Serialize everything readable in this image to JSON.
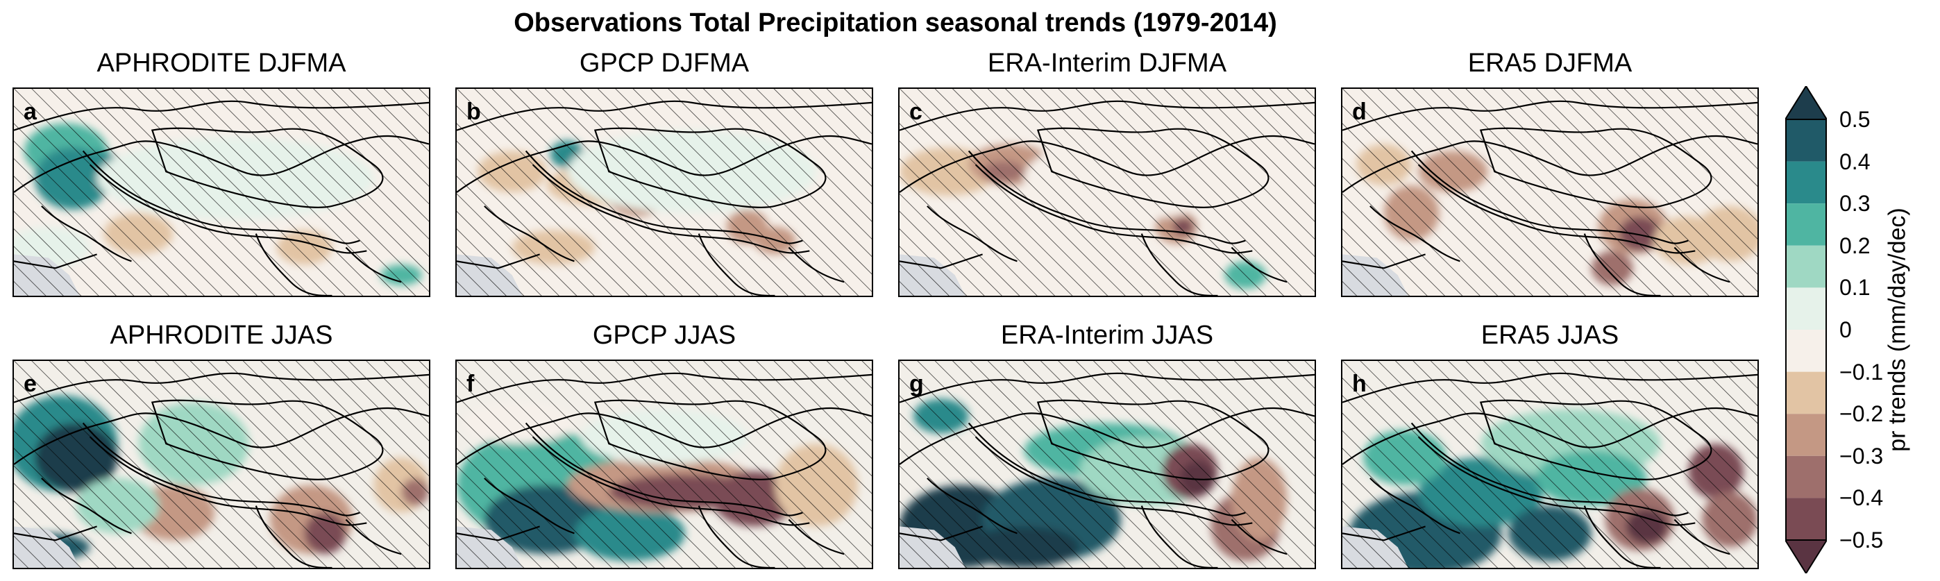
{
  "figure_title": "Observations Total Precipitation seasonal trends (1979-2014)",
  "panels": [
    {
      "label": "a",
      "title": "APHRODITE DJFMA",
      "dataset": "APHRODITE",
      "season": "DJFMA"
    },
    {
      "label": "b",
      "title": "GPCP DJFMA",
      "dataset": "GPCP",
      "season": "DJFMA"
    },
    {
      "label": "c",
      "title": "ERA-Interim DJFMA",
      "dataset": "ERA-Interim",
      "season": "DJFMA"
    },
    {
      "label": "d",
      "title": "ERA5 DJFMA",
      "dataset": "ERA5",
      "season": "DJFMA"
    },
    {
      "label": "e",
      "title": "APHRODITE JJAS",
      "dataset": "APHRODITE",
      "season": "JJAS"
    },
    {
      "label": "f",
      "title": "GPCP JJAS",
      "dataset": "GPCP",
      "season": "JJAS"
    },
    {
      "label": "g",
      "title": "ERA-Interim JJAS",
      "dataset": "ERA-Interim",
      "season": "JJAS"
    },
    {
      "label": "h",
      "title": "ERA5 JJAS",
      "dataset": "ERA5",
      "season": "JJAS"
    }
  ],
  "colorbar": {
    "label": "pr trends (mm/day/dec)",
    "ticks": [
      "0.5",
      "0.4",
      "0.3",
      "0.2",
      "0.1",
      "0",
      "−0.1",
      "−0.2",
      "−0.3",
      "−0.4",
      "−0.5"
    ],
    "levels_top_to_bottom": [
      {
        "range": ">0.5",
        "color": "#1d3d4c"
      },
      {
        "range": "0.4 to 0.5",
        "color": "#205a68"
      },
      {
        "range": "0.3 to 0.4",
        "color": "#2a8a8b"
      },
      {
        "range": "0.2 to 0.3",
        "color": "#4fb5a2"
      },
      {
        "range": "0.1 to 0.2",
        "color": "#9fd8c3"
      },
      {
        "range": "0 to 0.1",
        "color": "#e6f2ea"
      },
      {
        "range": "-0.1 to 0",
        "color": "#f6f0ea"
      },
      {
        "range": "-0.2 to -0.1",
        "color": "#e2c4a4"
      },
      {
        "range": "-0.3 to -0.2",
        "color": "#c49884"
      },
      {
        "range": "-0.4 to -0.3",
        "color": "#9e6f6c"
      },
      {
        "range": "-0.5 to -0.4",
        "color": "#7a4b54"
      },
      {
        "range": "<-0.5",
        "color": "#5a3442"
      }
    ],
    "extend": "both"
  },
  "colors": {
    "ocean": "#d8dbe0",
    "hatch": "#000000"
  }
}
